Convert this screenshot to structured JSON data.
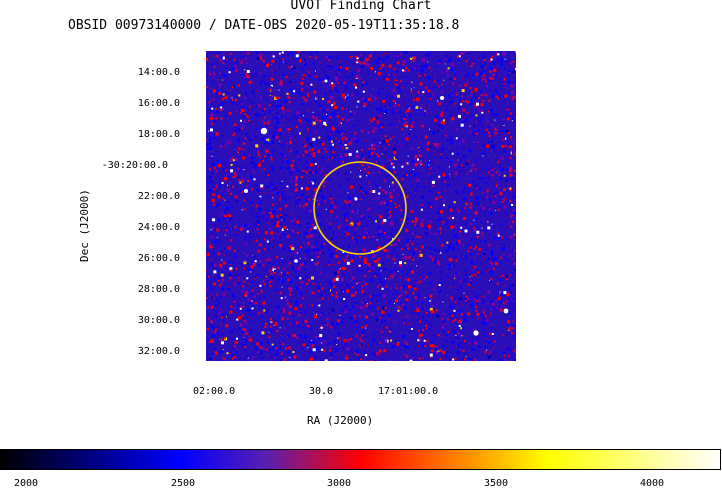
{
  "header": {
    "title": "UVOT Finding Chart",
    "subtitle": "OBSID 00973140000 / DATE-OBS 2020-05-19T11:35:18.8"
  },
  "chart_data": {
    "type": "heatmap",
    "title": "UVOT Finding Chart",
    "subtitle": "OBSID 00973140000 / DATE-OBS 2020-05-19T11:35:18.8",
    "xlabel": "RA (J2000)",
    "ylabel": "Dec (J2000)",
    "x_ticks": [
      "02:00.0",
      "30.0",
      "17:01:00.0"
    ],
    "y_ticks": [
      "14:00.0",
      "16:00.0",
      "18:00.0",
      "-30:20:00.0",
      "22:00.0",
      "24:00.0",
      "26:00.0",
      "28:00.0",
      "30:00.0",
      "32:00.0"
    ],
    "colorbar": {
      "ticks": [
        2000,
        2500,
        3000,
        3500,
        4000
      ],
      "range": [
        1900,
        4200
      ],
      "stops": [
        "#000000",
        "#0000ff",
        "#ff0000",
        "#ffff00",
        "#ffffff"
      ]
    },
    "marker": {
      "shape": "circle",
      "color": "#ffd400"
    }
  }
}
